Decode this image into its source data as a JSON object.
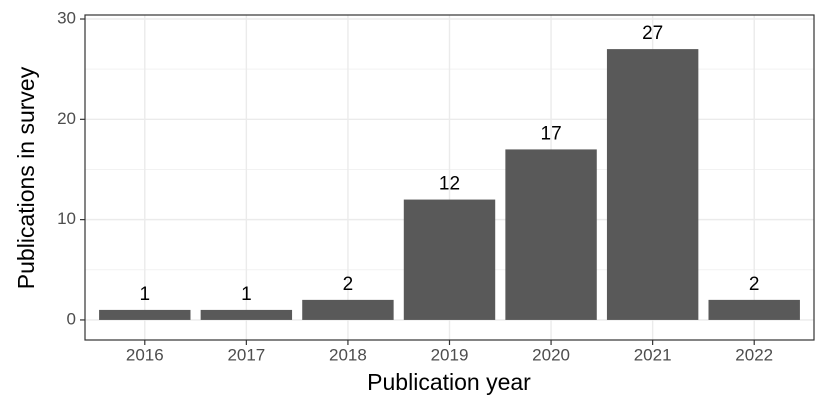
{
  "chart_data": {
    "type": "bar",
    "x_label": "Publication year",
    "y_label": "Publications in survey",
    "categories": [
      "2016",
      "2017",
      "2018",
      "2019",
      "2020",
      "2021",
      "2022"
    ],
    "values": [
      1,
      1,
      2,
      12,
      17,
      27,
      2
    ],
    "color": "#595959",
    "ylim": [
      -2,
      30.4
    ],
    "yticks": [
      0,
      10,
      20,
      30
    ],
    "grid": true
  }
}
